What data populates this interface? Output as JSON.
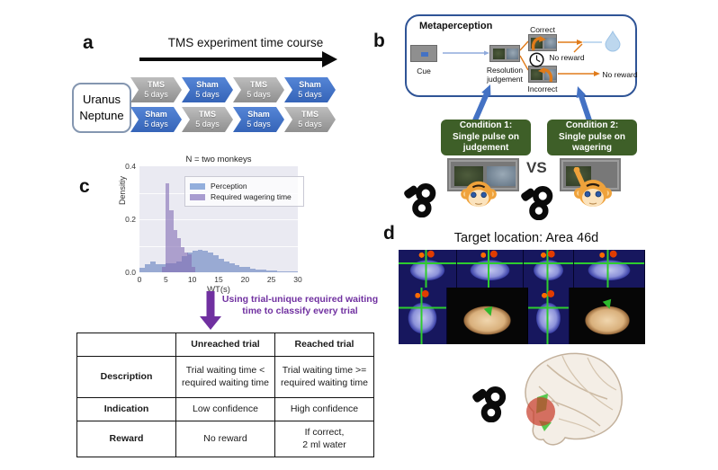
{
  "colors": {
    "chevron_blue": "#3564B8",
    "chevron_gray": "#A6A6A6",
    "metaperception_border": "#2F5496",
    "condition_green": "#3E5F28",
    "connector_orange": "#E07B1A",
    "big_arrow_blue": "#4472C4",
    "annotation_purple": "#7030A0",
    "hist_blue": "#92AEDC",
    "hist_purple": "#A89CD0",
    "plot_background": "#EAEAF2",
    "water_drop": "#BDD7EE"
  },
  "panel_a": {
    "label": "a",
    "title": "TMS experiment time course",
    "subjects": "Uranus\nNeptune",
    "rows": [
      [
        {
          "label": "TMS",
          "duration": "5 days",
          "style": "gray"
        },
        {
          "label": "Sham",
          "duration": "5 days",
          "style": "blue"
        },
        {
          "label": "TMS",
          "duration": "5 days",
          "style": "gray"
        },
        {
          "label": "Sham",
          "duration": "5 days",
          "style": "blue"
        }
      ],
      [
        {
          "label": "Sham",
          "duration": "5 days",
          "style": "blue"
        },
        {
          "label": "TMS",
          "duration": "5 days",
          "style": "gray"
        },
        {
          "label": "Sham",
          "duration": "5 days",
          "style": "blue"
        },
        {
          "label": "TMS",
          "duration": "5 days",
          "style": "gray"
        }
      ]
    ]
  },
  "panel_b": {
    "label": "b",
    "box_title": "Metaperception",
    "cue_label": "Cue",
    "resolution_label": "Resolution\njudgement",
    "correct_label": "Correct",
    "incorrect_label": "Incorrect",
    "no_reward_unreached": "No reward",
    "no_reward_incorrect": "No reward",
    "condition1": "Condition 1:\nSingle pulse on\njudgement",
    "condition2": "Condition 2:\nSingle pulse on\nwagering",
    "versus": "VS"
  },
  "panel_c": {
    "label": "c",
    "annotation": "Using trial-unique required waiting\ntime to classify every trial",
    "table": {
      "col_headers": [
        "",
        "Unreached trial",
        "Reached trial"
      ],
      "rows": [
        {
          "header": "Description",
          "unreached": "Trial waiting time <\nrequired waiting time",
          "reached": "Trial waiting time >=\nrequired waiting time"
        },
        {
          "header": "Indication",
          "unreached": "Low confidence",
          "reached": "High confidence"
        },
        {
          "header": "Reward",
          "unreached": "No reward",
          "reached": "If correct,\n2 ml water"
        }
      ]
    }
  },
  "panel_d": {
    "label": "d",
    "title": "Target location: Area 46d"
  },
  "chart_data": {
    "type": "bar",
    "subtype": "histogram",
    "title": "N = two monkeys",
    "xlabel": "WT(s)",
    "ylabel": "Densitiy",
    "xlim": [
      0,
      30
    ],
    "ylim": [
      0,
      0.4
    ],
    "x_ticks": [
      0,
      5,
      10,
      15,
      20,
      25,
      30
    ],
    "y_ticks": [
      0.0,
      0.2,
      0.4
    ],
    "grid": true,
    "legend_position": "upper-left-inside",
    "series": [
      {
        "name": "Perception",
        "legend_color": "#92AEDC",
        "color": "rgba(86,117,185,0.55)",
        "bin_start": 0,
        "bin_width": 1,
        "values": [
          0.018,
          0.032,
          0.042,
          0.03,
          0.03,
          0.033,
          0.033,
          0.04,
          0.062,
          0.075,
          0.08,
          0.085,
          0.082,
          0.075,
          0.065,
          0.05,
          0.042,
          0.033,
          0.026,
          0.022,
          0.02,
          0.012,
          0.009,
          0.01,
          0.006,
          0.006,
          0.004,
          0.003,
          0.003,
          0.002
        ]
      },
      {
        "name": "Required wagering time",
        "legend_color": "#A89CD0",
        "color": "rgba(130,108,180,0.60)",
        "bin_start": 4.3,
        "bin_width": 0.7,
        "values": [
          0.02,
          0.335,
          0.235,
          0.16,
          0.13,
          0.095,
          0.075,
          0.068,
          0.02
        ]
      }
    ]
  }
}
